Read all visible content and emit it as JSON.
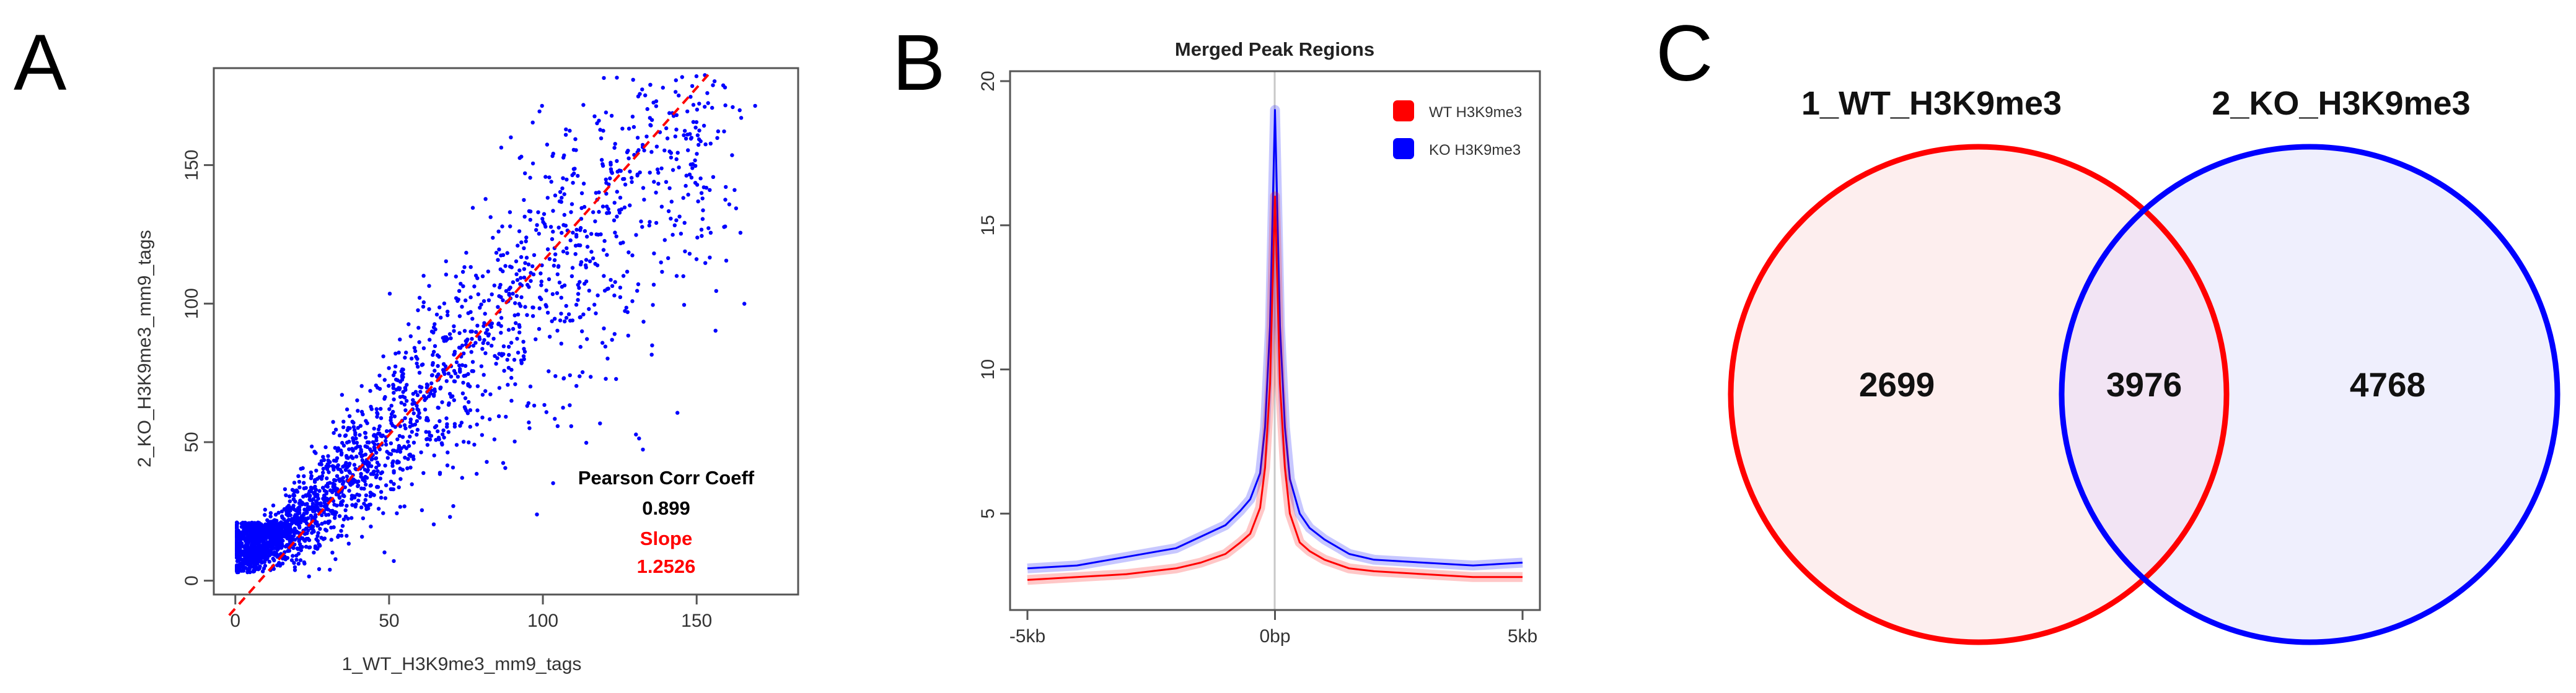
{
  "panels": {
    "a": "A",
    "b": "B",
    "c": "C"
  },
  "chart_data": [
    {
      "type": "scatter",
      "panel": "A",
      "xlabel": "1_WT_H3K9me3_mm9_tags",
      "ylabel": "2_KO_H3K9me3_mm9_tags",
      "xlim": [
        -7,
        183
      ],
      "ylim": [
        -5,
        185
      ],
      "xticks": [
        0,
        50,
        100,
        150
      ],
      "yticks": [
        0,
        50,
        100,
        150
      ],
      "point_color": "#0000ff",
      "point_count_approx": 2600,
      "annotations": {
        "corr_label": "Pearson Corr Coeff",
        "corr_value": "0.899",
        "slope_label": "Slope",
        "slope_value": "1.2526"
      },
      "fit_line": {
        "slope": 1.2526,
        "intercept": -10,
        "color": "#ff0000",
        "style": "dashed"
      }
    },
    {
      "type": "line",
      "panel": "B",
      "title": "Merged Peak Regions",
      "xlabel": "",
      "ylabel": "",
      "xticks": [
        "-5kb",
        "0bp",
        "5kb"
      ],
      "xlim": [
        -5000,
        5000
      ],
      "ylim": [
        2,
        20
      ],
      "yticks": [
        5,
        10,
        15,
        20
      ],
      "series": [
        {
          "name": "WT H3K9me3",
          "color": "#ff0000",
          "x": [
            -5000,
            -4000,
            -3000,
            -2000,
            -1500,
            -1000,
            -700,
            -500,
            -300,
            -200,
            -100,
            -50,
            0,
            50,
            100,
            200,
            300,
            500,
            700,
            1000,
            1500,
            2000,
            3000,
            4000,
            5000
          ],
          "y": [
            2.7,
            2.8,
            2.9,
            3.1,
            3.3,
            3.6,
            4.0,
            4.3,
            5.2,
            6.6,
            9.5,
            12.8,
            16.0,
            12.8,
            9.5,
            6.6,
            5.0,
            4.0,
            3.7,
            3.4,
            3.1,
            3.0,
            2.9,
            2.8,
            2.8
          ]
        },
        {
          "name": "KO H3K9me3",
          "color": "#0000ff",
          "x": [
            -5000,
            -4000,
            -3000,
            -2000,
            -1500,
            -1000,
            -700,
            -500,
            -300,
            -200,
            -100,
            -50,
            0,
            50,
            100,
            200,
            300,
            500,
            700,
            1000,
            1500,
            2000,
            3000,
            4000,
            5000
          ],
          "y": [
            3.1,
            3.2,
            3.5,
            3.8,
            4.2,
            4.6,
            5.1,
            5.5,
            6.4,
            8.0,
            11.5,
            15.3,
            19.0,
            15.3,
            11.5,
            8.0,
            6.2,
            5.0,
            4.5,
            4.1,
            3.6,
            3.4,
            3.3,
            3.2,
            3.3
          ]
        }
      ],
      "legend_position": "top-right"
    },
    {
      "type": "venn",
      "panel": "C",
      "sets": [
        {
          "name": "1_WT_H3K9me3",
          "color": "#ff0000",
          "fill": "#fdeeee"
        },
        {
          "name": "2_KO_H3K9me3",
          "color": "#0000ff",
          "fill": "#efeffd"
        }
      ],
      "overlap_fill": "#f2e4f4",
      "counts": {
        "only_a": "2699",
        "both": "3976",
        "only_b": "4768"
      }
    }
  ]
}
